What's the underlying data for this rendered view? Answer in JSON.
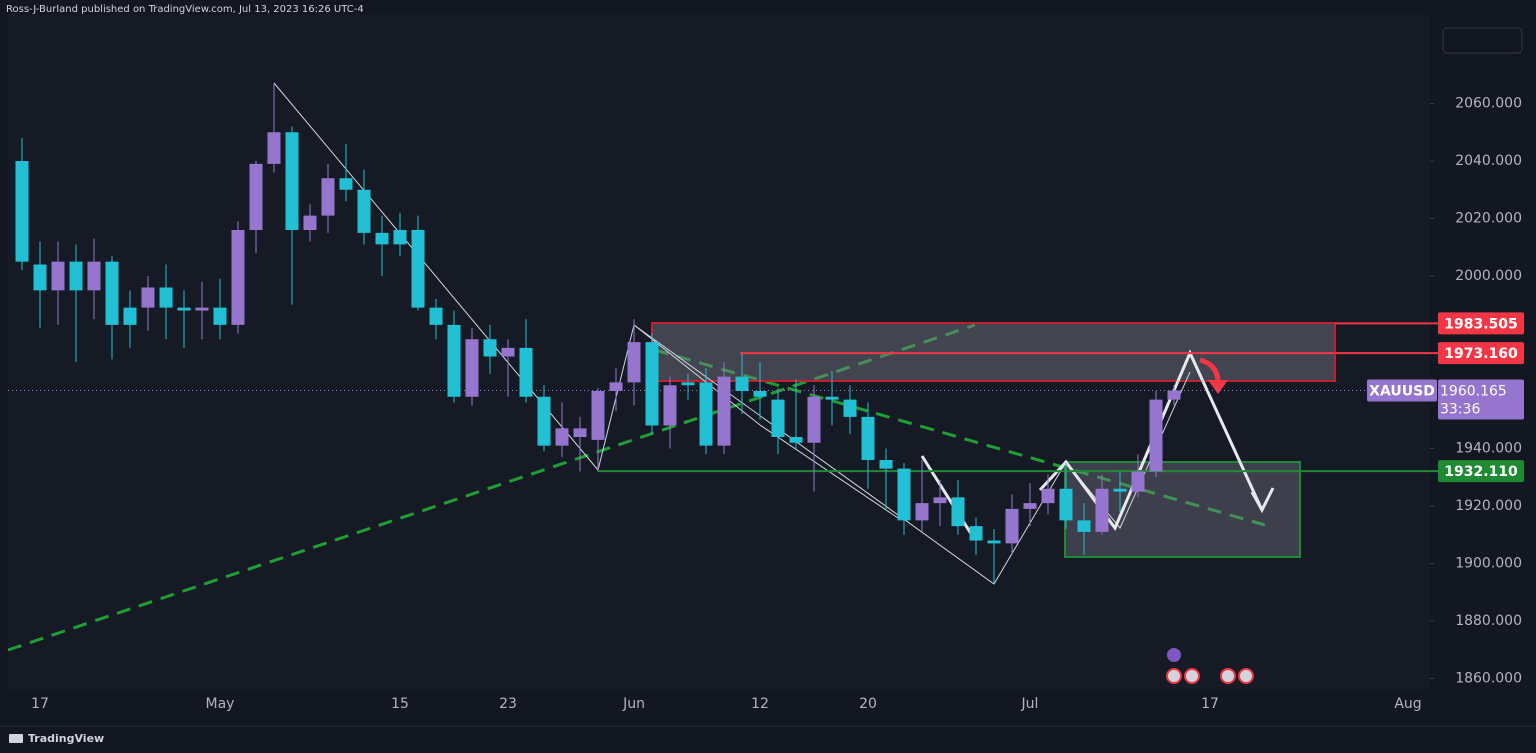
{
  "header": "Ross-J-Burland published on TradingView.com, Jul 13, 2023 16:26 UTC-4",
  "footer": "TradingView",
  "chart_data": {
    "type": "candlestick",
    "up_color": "#9575cd",
    "down_color": "#22c0d4",
    "categories": [
      null,
      "17",
      null,
      null,
      null,
      null,
      null,
      null,
      null,
      null,
      null,
      "May",
      null,
      null,
      null,
      null,
      null,
      null,
      null,
      null,
      null,
      "15",
      null,
      null,
      null,
      null,
      null,
      "23",
      null,
      null,
      null,
      null,
      null,
      null,
      "Jun",
      null,
      null,
      null,
      null,
      null,
      null,
      "12",
      null,
      null,
      null,
      null,
      null,
      "20",
      null,
      null,
      null,
      null,
      null,
      null,
      null,
      null,
      "Jul",
      null,
      null,
      null,
      null,
      null,
      null,
      null,
      null,
      null,
      "17",
      null,
      null,
      null,
      null,
      null,
      null,
      null,
      null,
      null,
      null,
      "Aug",
      null
    ],
    "open": [
      2040,
      2004,
      1995,
      2005,
      1995,
      2005,
      1989,
      1989,
      1996,
      1989,
      1988,
      1989,
      1983,
      2016,
      2039,
      2050,
      2016,
      2021,
      2034,
      2030,
      2015,
      2016,
      2016,
      1989,
      1983,
      1958,
      1978,
      1972,
      1975,
      1958,
      1941,
      1944,
      1943,
      1960,
      1963,
      1977,
      1948,
      1963,
      1963,
      1941,
      1965,
      1960,
      1957,
      1944,
      1942,
      1958,
      1957,
      1951,
      1936,
      1933,
      1915,
      1921,
      1923,
      1913,
      1908,
      1907,
      1919,
      1921,
      1926,
      1915,
      1911,
      1926,
      1925,
      1932,
      1957,
      null,
      null,
      null,
      null,
      null,
      null,
      null,
      null,
      null,
      null,
      null,
      null,
      null,
      null
    ],
    "high": [
      2048,
      2012,
      2012,
      2011,
      2013,
      2007,
      1995,
      2000,
      2004,
      1995,
      1998,
      1999,
      2019,
      2040,
      2067,
      2052,
      2025,
      2039,
      2046,
      2037,
      2021,
      2022,
      2021,
      1992,
      1988,
      1982,
      1983,
      1978,
      1985,
      1962,
      1956,
      1951,
      1961,
      1968,
      1985,
      1980,
      1965,
      1966,
      1968,
      1970,
      1973,
      1970,
      1961,
      1964,
      1962,
      1967,
      1962,
      1956,
      1940,
      1935,
      1936,
      1929,
      1929,
      1916,
      1912,
      1924,
      1928,
      1931,
      1935,
      1921,
      1931,
      1932,
      1938,
      1960,
      1962,
      null,
      null,
      null,
      null,
      null,
      null,
      null,
      null,
      null,
      null,
      null,
      null,
      null,
      null
    ],
    "low": [
      2002,
      1982,
      1983,
      1970,
      1985,
      1971,
      1975,
      1981,
      1978,
      1975,
      1978,
      1978,
      1980,
      2008,
      2036,
      1990,
      2012,
      2015,
      2026,
      2011,
      2000,
      2007,
      1988,
      1978,
      1956,
      1955,
      1966,
      1958,
      1956,
      1939,
      1937,
      1932,
      1932,
      1953,
      1955,
      1945,
      1940,
      1957,
      1938,
      1938,
      1952,
      1950,
      1938,
      1940,
      1925,
      1948,
      1945,
      1926,
      1919,
      1910,
      1911,
      1913,
      1910,
      1903,
      1893,
      1903,
      1913,
      1917,
      1912,
      1903,
      1910,
      1918,
      1923,
      1930,
      1955,
      null,
      null,
      null,
      null,
      null,
      null,
      null,
      null,
      null,
      null,
      null,
      null,
      null,
      null
    ],
    "close": [
      2005,
      1995,
      2005,
      1995,
      2005,
      1983,
      1983,
      1996,
      1989,
      1988,
      1989,
      1983,
      2016,
      2039,
      2050,
      2016,
      2021,
      2034,
      2030,
      2015,
      2011,
      2011,
      1989,
      1983,
      1958,
      1978,
      1972,
      1975,
      1958,
      1941,
      1947,
      1947,
      1960,
      1963,
      1977,
      1948,
      1962,
      1962,
      1941,
      1965,
      1960,
      1958,
      1944,
      1942,
      1958,
      1957,
      1951,
      1936,
      1933,
      1915,
      1921,
      1923,
      1913,
      1908,
      1907,
      1919,
      1921,
      1926,
      1915,
      1911,
      1926,
      1925,
      1932,
      1957,
      1960.165,
      null,
      null,
      null,
      null,
      null,
      null,
      null,
      null,
      null,
      null,
      null,
      null,
      null,
      null
    ],
    "ylim": [
      1856,
      2096
    ],
    "yticks": [
      {
        "value": 1860,
        "label": "1860.000"
      },
      {
        "value": 1880,
        "label": "1880.000"
      },
      {
        "value": 1900,
        "label": "1900.000"
      },
      {
        "value": 1920,
        "label": "1920.000"
      },
      {
        "value": 1940,
        "label": "1940.000"
      },
      {
        "value": 2000,
        "label": "2000.000"
      },
      {
        "value": 2020,
        "label": "2020.000"
      },
      {
        "value": 2040,
        "label": "2040.000"
      },
      {
        "value": 2060,
        "label": "2060.000"
      }
    ],
    "grid": false,
    "hlines": [
      {
        "value": 1983.505,
        "label": "1983.505",
        "color": "#f23645"
      },
      {
        "value": 1973.16,
        "label": "1973.160",
        "color": "#f23645"
      },
      {
        "value": 1932.11,
        "label": "1932.110",
        "color": "#1f8a34"
      }
    ],
    "last_price": {
      "name": "XAUUSD",
      "value": 1960.165,
      "label": "1960.165",
      "countdown": "33:36",
      "color": "#9575cd"
    }
  }
}
